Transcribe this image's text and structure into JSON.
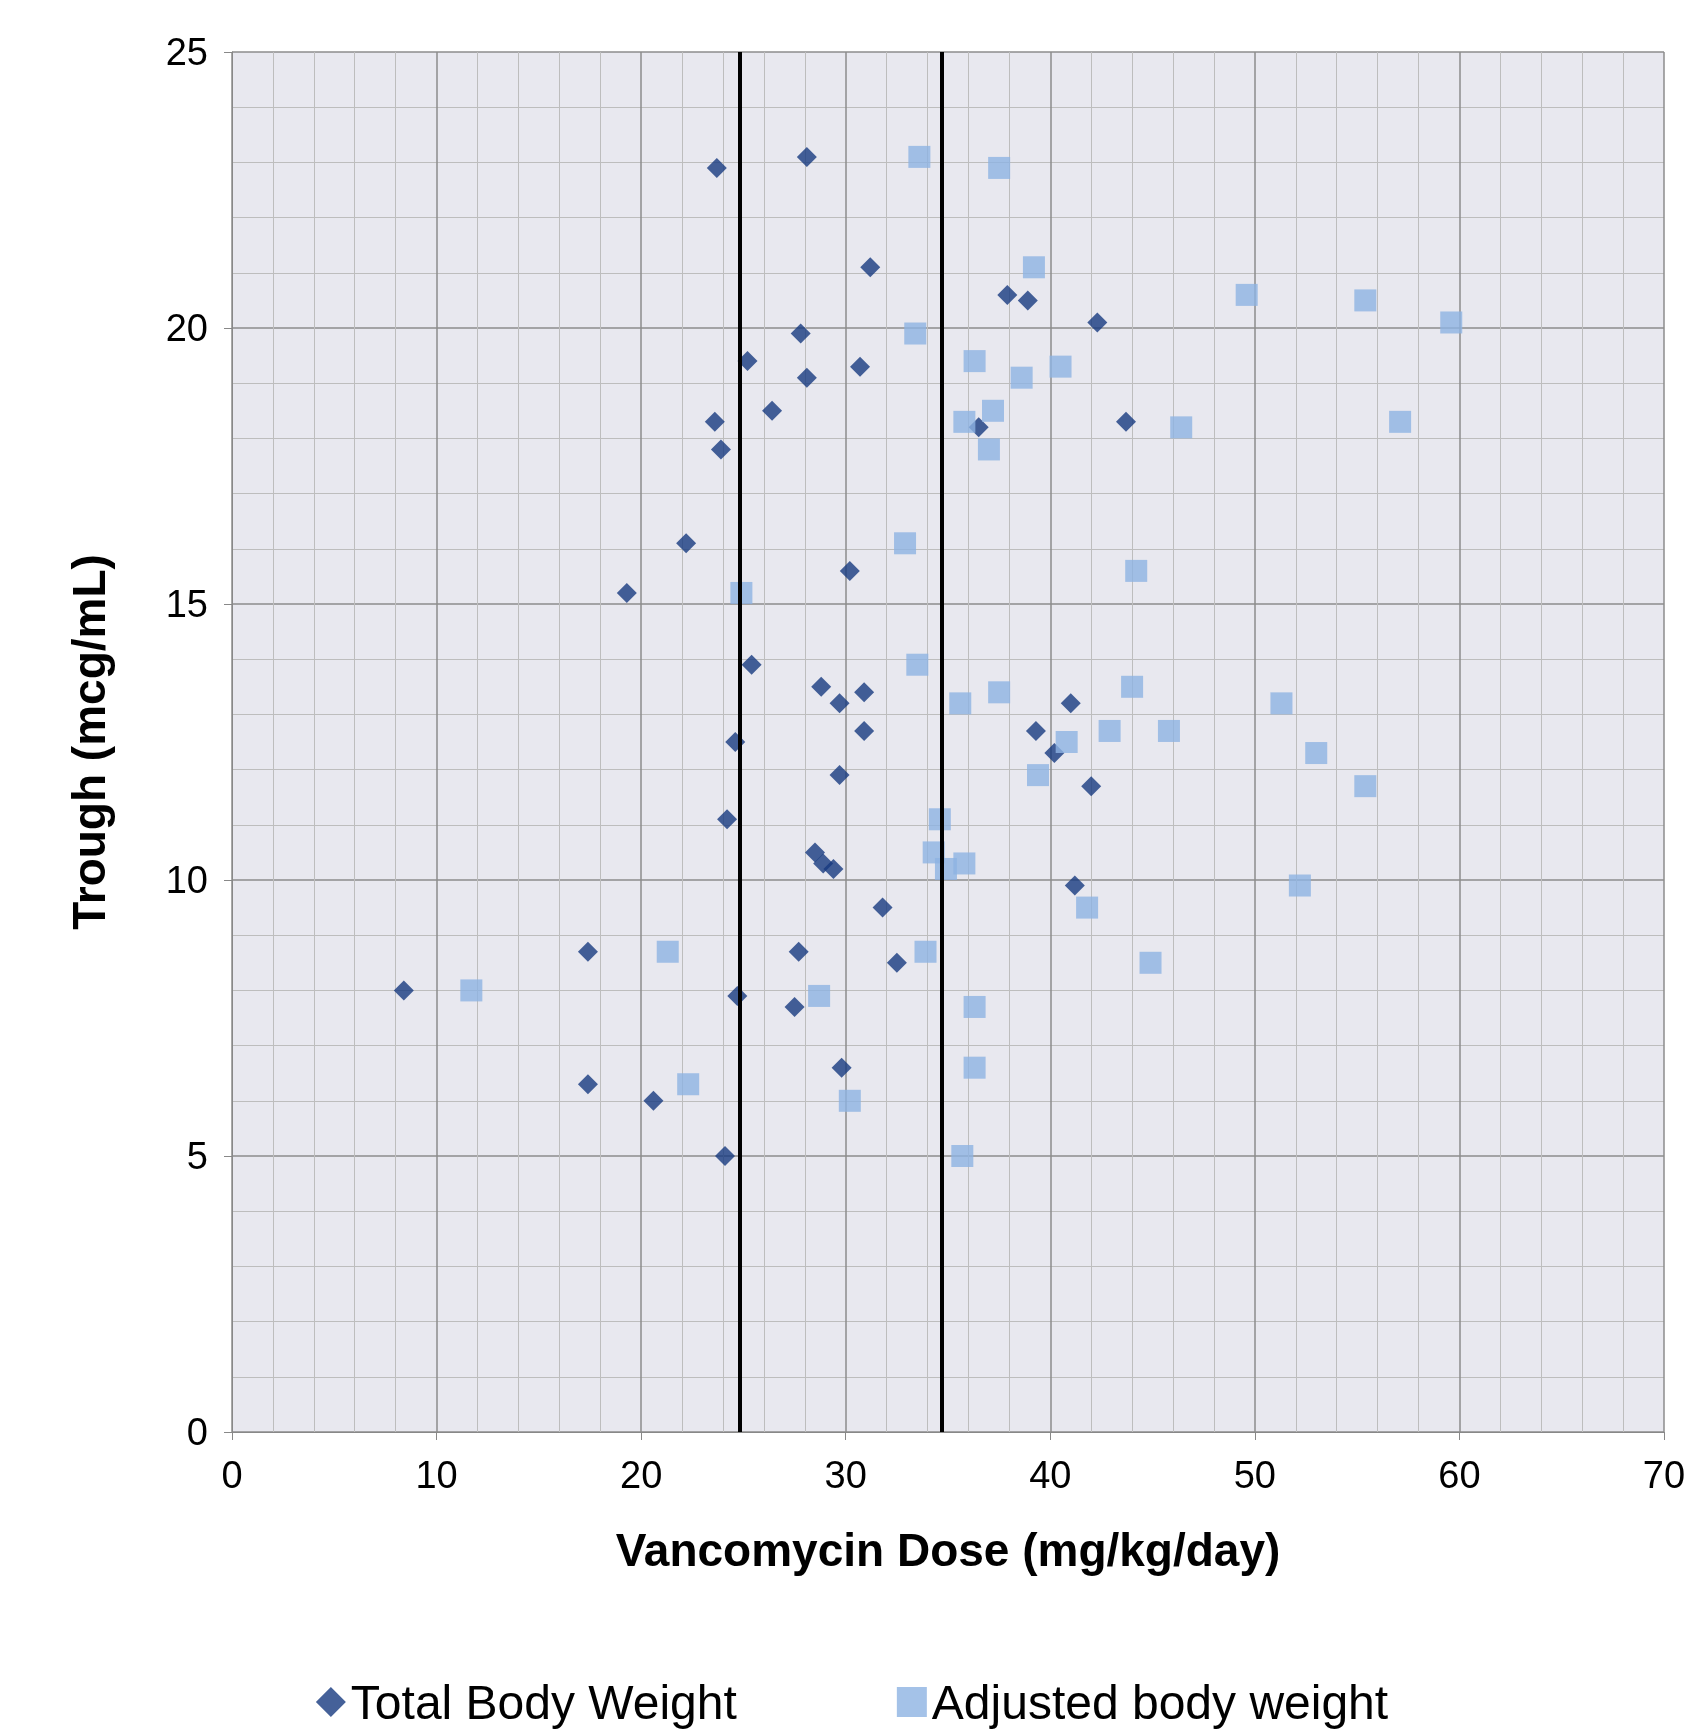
{
  "chart_data": {
    "type": "scatter",
    "xlabel": "Vancomycin Dose (mg/kg/day)",
    "ylabel": "Trough (mcg/mL)",
    "xlim": [
      0,
      70
    ],
    "xticks": [
      0,
      10,
      20,
      30,
      40,
      50,
      60,
      70
    ],
    "ylim": [
      0,
      25
    ],
    "yticks": [
      0,
      5,
      10,
      15,
      20,
      25
    ],
    "grid": true,
    "legend": "bottom",
    "series": [
      {
        "name": "Total Body Weight",
        "color": "#163a80",
        "marker": "diamond",
        "x": [
          8.4,
          17.4,
          17.4,
          19.3,
          20.6,
          22.2,
          23.7,
          23.6,
          23.9,
          24.1,
          24.2,
          24.6,
          24.7,
          25.2,
          25.4,
          26.4,
          27.5,
          27.7,
          27.8,
          28.1,
          28.1,
          28.5,
          28.8,
          28.9,
          29.4,
          29.7,
          29.7,
          29.8,
          30.2,
          30.7,
          30.9,
          30.9,
          31.2,
          31.8,
          32.5,
          36.5,
          37.9,
          38.9,
          39.3,
          40.2,
          41.0,
          41.2,
          42.0,
          42.3,
          43.7
        ],
        "values": [
          8.0,
          8.7,
          6.3,
          15.2,
          6.0,
          16.1,
          22.9,
          18.3,
          17.8,
          5.0,
          11.1,
          12.5,
          7.9,
          19.4,
          13.9,
          18.5,
          7.7,
          8.7,
          19.9,
          23.1,
          19.1,
          10.5,
          13.5,
          10.3,
          10.2,
          13.2,
          11.9,
          6.6,
          15.6,
          19.3,
          12.7,
          13.4,
          21.1,
          9.5,
          8.5,
          18.2,
          20.6,
          20.5,
          12.7,
          12.3,
          13.2,
          9.9,
          11.7,
          20.1,
          18.3
        ]
      },
      {
        "name": "Adjusted body weight",
        "color": "#8db3e2",
        "marker": "square",
        "x": [
          11.7,
          21.3,
          22.3,
          24.9,
          28.7,
          30.2,
          32.9,
          33.4,
          33.5,
          33.6,
          33.9,
          34.3,
          34.6,
          34.9,
          35.6,
          35.7,
          35.8,
          35.8,
          36.3,
          36.3,
          36.3,
          37.0,
          37.2,
          37.5,
          37.5,
          38.6,
          39.2,
          39.4,
          40.5,
          40.8,
          41.8,
          42.9,
          44.0,
          44.2,
          44.9,
          45.8,
          46.4,
          49.6,
          51.3,
          52.2,
          53.0,
          55.4,
          55.4,
          57.1,
          59.6
        ],
        "values": [
          8.0,
          8.7,
          6.3,
          15.2,
          7.9,
          6.0,
          16.1,
          19.9,
          13.9,
          23.1,
          8.7,
          10.5,
          11.1,
          10.2,
          13.2,
          5.0,
          10.3,
          18.3,
          7.7,
          6.6,
          19.4,
          17.8,
          18.5,
          22.9,
          13.4,
          19.1,
          21.1,
          11.9,
          19.3,
          12.5,
          9.5,
          12.7,
          13.5,
          15.6,
          8.5,
          12.7,
          18.2,
          20.6,
          13.2,
          9.9,
          12.3,
          20.5,
          11.7,
          18.3,
          20.1
        ]
      }
    ],
    "ref_lines": [
      {
        "axis": "x",
        "value": 24.8,
        "color": "#000000"
      },
      {
        "axis": "x",
        "value": 34.7,
        "color": "#000000"
      }
    ]
  }
}
